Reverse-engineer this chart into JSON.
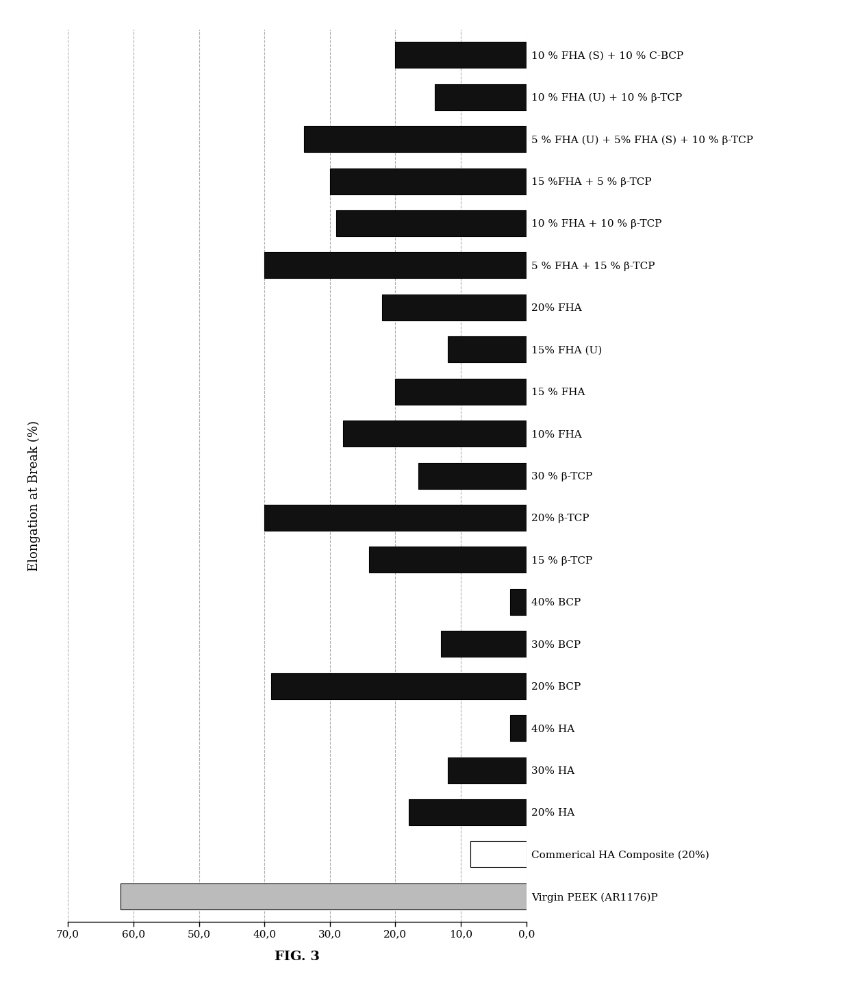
{
  "categories": [
    "Virgin PEEK (AR1176)P",
    "Commerical HA Composite (20%)",
    "20% HA",
    "30% HA",
    "40% HA",
    "20% BCP",
    "30% BCP",
    "40% BCP",
    "15 % β-TCP",
    "20% β-TCP",
    "30 % β-TCP",
    "10% FHA",
    "15 % FHA",
    "15% FHA (U)",
    "20% FHA",
    "5 % FHA + 15 % β-TCP",
    "10 % FHA + 10 % β-TCP",
    "15 %FHA + 5 % β-TCP",
    "5 % FHA (U) + 5% FHA (S) + 10 % β-TCP",
    "10 % FHA (U) + 10 % β-TCP",
    "10 % FHA (S) + 10 % C-BCP"
  ],
  "values": [
    62.0,
    8.5,
    18.0,
    12.0,
    2.5,
    39.0,
    13.0,
    2.5,
    24.0,
    40.0,
    16.5,
    28.0,
    20.0,
    12.0,
    22.0,
    40.0,
    29.0,
    30.0,
    34.0,
    14.0,
    20.0
  ],
  "bar_colors": [
    "#bbbbbb",
    "#ffffff",
    "#111111",
    "#111111",
    "#111111",
    "#111111",
    "#111111",
    "#111111",
    "#111111",
    "#111111",
    "#111111",
    "#111111",
    "#111111",
    "#111111",
    "#111111",
    "#111111",
    "#111111",
    "#111111",
    "#111111",
    "#111111",
    "#111111"
  ],
  "bar_edge_colors": [
    "#000000",
    "#000000",
    "#000000",
    "#000000",
    "#000000",
    "#000000",
    "#000000",
    "#000000",
    "#000000",
    "#000000",
    "#000000",
    "#000000",
    "#000000",
    "#000000",
    "#000000",
    "#000000",
    "#000000",
    "#000000",
    "#000000",
    "#000000",
    "#000000"
  ],
  "xlim": [
    0,
    70
  ],
  "xticks": [
    0,
    10,
    20,
    30,
    40,
    50,
    60,
    70
  ],
  "xlabel": "FIG. 3",
  "ylabel": "Elongation at Break (%)",
  "background_color": "#ffffff",
  "grid_color": "#999999",
  "bar_height": 0.62,
  "label_fontsize": 11,
  "tick_fontsize": 11,
  "ylabel_fontsize": 13,
  "xlabel_fontsize": 14
}
